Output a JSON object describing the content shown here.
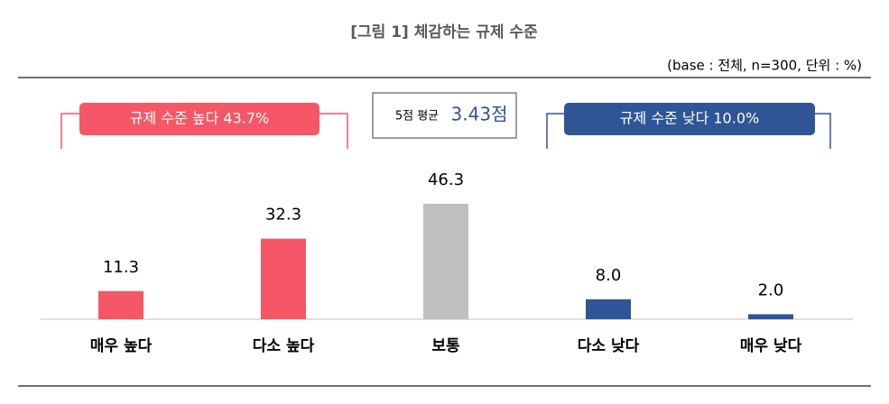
{
  "chart_data": {
    "type": "bar",
    "title": "[그림 1] 체감하는 규제 수준",
    "subtitle": "(base : 전체, n=300, 단위 : %)",
    "categories": [
      "매우 높다",
      "다소 높다",
      "보통",
      "다소 낮다",
      "매우 낮다"
    ],
    "values": [
      11.3,
      32.3,
      46.3,
      8.0,
      2.0
    ],
    "value_labels": [
      "11.3",
      "32.3",
      "46.3",
      "8.0",
      "2.0"
    ],
    "colors": [
      "#f65766",
      "#f65766",
      "#bfbfbf",
      "#2f5597",
      "#2f5597"
    ],
    "annotations": {
      "high": {
        "text": "규제 수준 높다 43.7%",
        "color": "#f65766"
      },
      "mean_label": "5점 평균",
      "mean_value": "3.43점",
      "low": {
        "text": "규제 수준 낮다 10.0%",
        "color": "#2f5597"
      }
    }
  }
}
